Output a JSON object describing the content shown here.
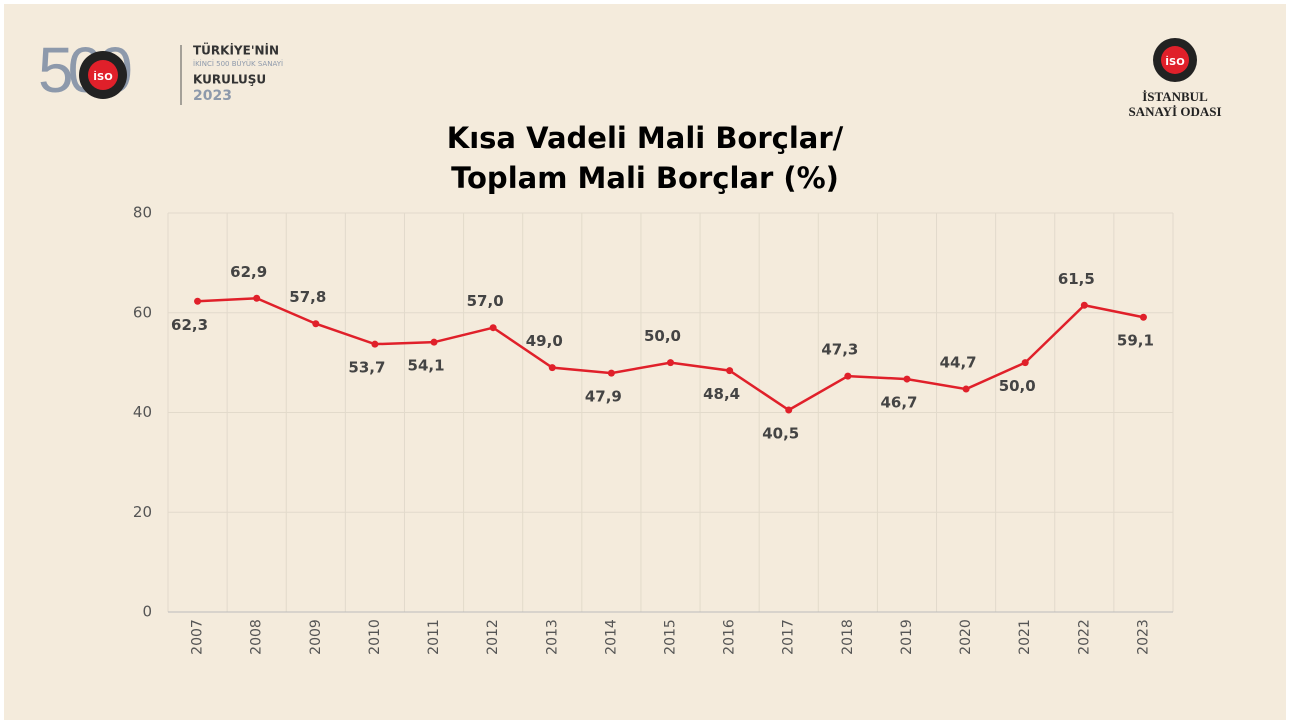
{
  "header": {
    "left_logo": {
      "number": "500",
      "badge": "İSO",
      "line1": "TÜRKİYE'NİN",
      "line2": "İKİNCİ 500 BÜYÜK SANAYİ",
      "line3": "KURULUŞU",
      "line4": "2023"
    },
    "right_logo": {
      "badge": "İSO",
      "line1": "İSTANBUL",
      "line2": "SANAYİ ODASI"
    }
  },
  "chart_data": {
    "type": "line",
    "title": [
      "Kısa Vadeli Mali Borçlar/",
      "Toplam Mali Borçlar (%)"
    ],
    "categories": [
      "2007",
      "2008",
      "2009",
      "2010",
      "2011",
      "2012",
      "2013",
      "2014",
      "2015",
      "2016",
      "2017",
      "2018",
      "2019",
      "2020",
      "2021",
      "2022",
      "2023"
    ],
    "series": [
      {
        "name": "Kısa Vadeli Mali Borçlar/Toplam Mali Borçlar",
        "color": "#e0202a",
        "values": [
          62.3,
          62.9,
          57.8,
          53.7,
          54.1,
          57.0,
          49.0,
          47.9,
          50.0,
          48.4,
          40.5,
          47.3,
          46.7,
          44.7,
          50.0,
          61.5,
          59.1
        ],
        "value_labels": [
          "62,3",
          "62,9",
          "57,8",
          "53,7",
          "54,1",
          "57,0",
          "49,0",
          "47,9",
          "50,0",
          "48,4",
          "40,5",
          "47,3",
          "46,7",
          "44,7",
          "50,0",
          "61,5",
          "59,1"
        ]
      }
    ],
    "ylim": [
      0,
      80
    ],
    "yticks": [
      0,
      20,
      40,
      60,
      80
    ],
    "grid": true
  }
}
